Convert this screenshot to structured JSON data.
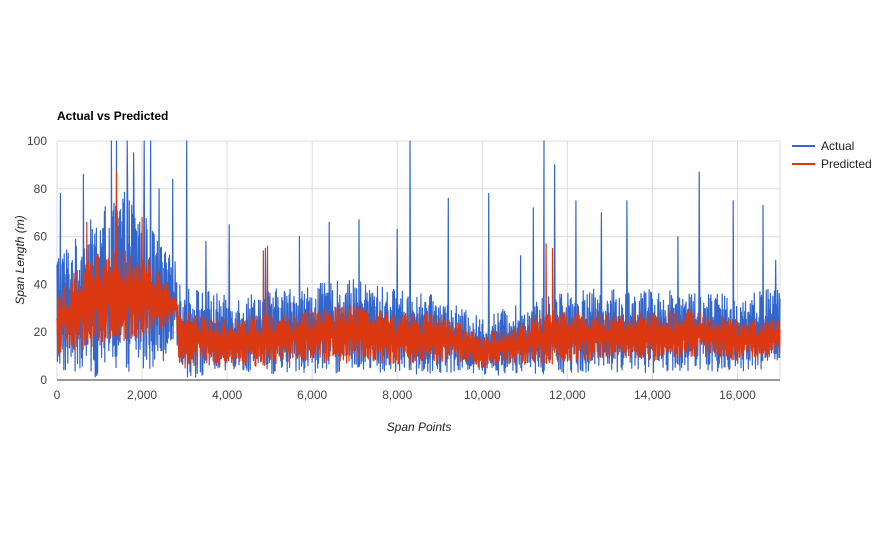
{
  "chart_data": {
    "type": "line",
    "title": "Actual vs Predicted",
    "xlabel": "Span Points",
    "ylabel": "Span Length (m)",
    "xlim": [
      0,
      17000
    ],
    "ylim": [
      0,
      100
    ],
    "x_ticks": [
      0,
      2000,
      4000,
      6000,
      8000,
      10000,
      12000,
      14000,
      16000
    ],
    "x_tick_labels": [
      "0",
      "2,000",
      "4,000",
      "6,000",
      "8,000",
      "10,000",
      "12,000",
      "14,000",
      "16,000"
    ],
    "y_ticks": [
      0,
      20,
      40,
      60,
      80,
      100
    ],
    "y_tick_labels": [
      "0",
      "20",
      "40",
      "60",
      "80",
      "100"
    ],
    "grid": true,
    "legend_position": "right",
    "series": [
      {
        "name": "Actual",
        "color": "#3366cc",
        "envelope": {
          "x": [
            0,
            500,
            1000,
            1500,
            2000,
            2500,
            2800,
            2850,
            3500,
            4000,
            5000,
            6000,
            7000,
            8000,
            9000,
            9500,
            10000,
            10500,
            11000,
            11500,
            12000,
            13000,
            14000,
            15000,
            16000,
            17000
          ],
          "low": [
            3,
            2,
            1,
            1,
            3,
            8,
            20,
            1,
            1,
            2,
            2,
            3,
            3,
            2,
            3,
            3,
            2,
            2,
            3,
            2,
            3,
            3,
            3,
            4,
            3,
            5
          ],
          "high": [
            55,
            60,
            72,
            80,
            72,
            55,
            50,
            40,
            38,
            35,
            38,
            40,
            42,
            38,
            35,
            30,
            26,
            30,
            32,
            35,
            38,
            38,
            38,
            38,
            35,
            40
          ]
        },
        "peaks": [
          {
            "x": 80,
            "y": 78
          },
          {
            "x": 620,
            "y": 86
          },
          {
            "x": 1280,
            "y": 100
          },
          {
            "x": 1400,
            "y": 100
          },
          {
            "x": 1650,
            "y": 100
          },
          {
            "x": 1800,
            "y": 95
          },
          {
            "x": 2050,
            "y": 100
          },
          {
            "x": 2200,
            "y": 100
          },
          {
            "x": 2400,
            "y": 80
          },
          {
            "x": 2720,
            "y": 84
          },
          {
            "x": 3050,
            "y": 100
          },
          {
            "x": 3500,
            "y": 58
          },
          {
            "x": 4050,
            "y": 65
          },
          {
            "x": 4900,
            "y": 55
          },
          {
            "x": 5700,
            "y": 60
          },
          {
            "x": 6400,
            "y": 66
          },
          {
            "x": 7100,
            "y": 73
          },
          {
            "x": 7100,
            "y": 67
          },
          {
            "x": 8000,
            "y": 63
          },
          {
            "x": 8300,
            "y": 100
          },
          {
            "x": 9200,
            "y": 76
          },
          {
            "x": 10150,
            "y": 78
          },
          {
            "x": 10900,
            "y": 52
          },
          {
            "x": 11200,
            "y": 72
          },
          {
            "x": 11450,
            "y": 100
          },
          {
            "x": 11700,
            "y": 90
          },
          {
            "x": 12200,
            "y": 75
          },
          {
            "x": 12800,
            "y": 70
          },
          {
            "x": 13400,
            "y": 75
          },
          {
            "x": 14600,
            "y": 60
          },
          {
            "x": 15100,
            "y": 87
          },
          {
            "x": 15900,
            "y": 75
          },
          {
            "x": 16600,
            "y": 73
          },
          {
            "x": 16900,
            "y": 50
          }
        ]
      },
      {
        "name": "Predicted",
        "color": "#dc3912",
        "envelope": {
          "x": [
            0,
            500,
            1000,
            1500,
            2000,
            2500,
            2800,
            2850,
            3500,
            4000,
            5000,
            6000,
            7000,
            8000,
            9000,
            9500,
            10000,
            10500,
            11000,
            11500,
            12000,
            13000,
            14000,
            15000,
            16000,
            17000
          ],
          "low": [
            10,
            12,
            14,
            15,
            18,
            22,
            28,
            4,
            5,
            5,
            6,
            7,
            7,
            6,
            7,
            7,
            5,
            6,
            6,
            6,
            8,
            8,
            8,
            10,
            8,
            10
          ],
          "high": [
            38,
            48,
            55,
            55,
            55,
            42,
            35,
            32,
            28,
            25,
            28,
            30,
            32,
            28,
            28,
            24,
            18,
            22,
            24,
            30,
            30,
            28,
            28,
            30,
            25,
            26
          ]
        },
        "peaks": [
          {
            "x": 700,
            "y": 66
          },
          {
            "x": 1400,
            "y": 87
          },
          {
            "x": 2000,
            "y": 68
          },
          {
            "x": 4850,
            "y": 54
          },
          {
            "x": 4950,
            "y": 56
          },
          {
            "x": 11500,
            "y": 57
          },
          {
            "x": 11650,
            "y": 55
          }
        ]
      }
    ]
  }
}
